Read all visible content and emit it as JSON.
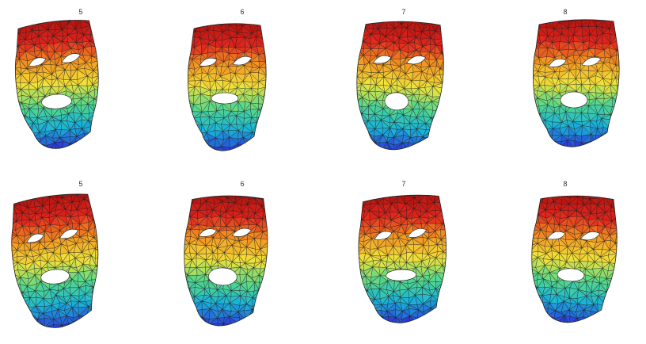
{
  "figure": {
    "rows": [
      {
        "panels": [
          {
            "label": "5"
          },
          {
            "label": "6"
          },
          {
            "label": "7"
          },
          {
            "label": "8"
          }
        ]
      },
      {
        "panels": [
          {
            "label": "5"
          },
          {
            "label": "6"
          },
          {
            "label": "7"
          },
          {
            "label": "8"
          }
        ]
      }
    ],
    "colormap": [
      "#2b3fd9",
      "#19b3d9",
      "#55d98a",
      "#f0e23a",
      "#f39a22",
      "#e2251e",
      "#b3140f"
    ]
  }
}
